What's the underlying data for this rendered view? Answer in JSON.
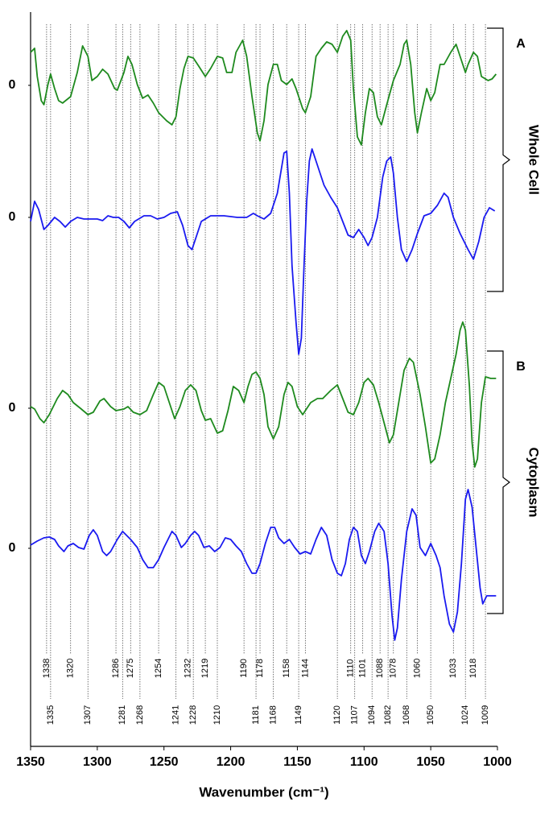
{
  "chart_data": {
    "type": "line",
    "xlabel": "Wavenumber (cm⁻¹)",
    "xlim": [
      1350,
      1000
    ],
    "xticks": [
      1350,
      1300,
      1250,
      1200,
      1150,
      1100,
      1050,
      1000
    ],
    "ylim": [
      0,
      912
    ],
    "yticks": [
      {
        "value": 821,
        "label": "0"
      },
      {
        "value": 657,
        "label": "0"
      },
      {
        "value": 420,
        "label": "0"
      },
      {
        "value": 246,
        "label": "0"
      }
    ],
    "marker_lines_upper": [
      1338,
      1320,
      1286,
      1275,
      1254,
      1232,
      1219,
      1190,
      1178,
      1158,
      1144,
      1110,
      1101,
      1088,
      1078,
      1060,
      1033,
      1018
    ],
    "marker_lines_lower": [
      1335,
      1307,
      1281,
      1268,
      1241,
      1228,
      1210,
      1181,
      1168,
      1149,
      1120,
      1107,
      1094,
      1082,
      1068,
      1050,
      1024,
      1009
    ],
    "groups": [
      {
        "letter": "A",
        "label": "Whole Cell"
      },
      {
        "letter": "B",
        "label": "Cytoplasm"
      }
    ],
    "series": [
      {
        "color": "#1e8a1e",
        "x": [
          1350,
          1347,
          1345,
          1342,
          1340,
          1337,
          1335,
          1332,
          1329,
          1326,
          1320,
          1315,
          1311,
          1307,
          1304,
          1300,
          1296,
          1292,
          1287,
          1285,
          1280,
          1277,
          1274,
          1270,
          1266,
          1262,
          1258,
          1254,
          1248,
          1244,
          1241,
          1238,
          1235,
          1232,
          1228,
          1224,
          1219,
          1215,
          1210,
          1206,
          1203,
          1199,
          1196,
          1191,
          1188,
          1184,
          1180,
          1178,
          1175,
          1172,
          1168,
          1165,
          1162,
          1158,
          1154,
          1151,
          1146,
          1144,
          1140,
          1136,
          1132,
          1128,
          1124,
          1120,
          1116,
          1113,
          1110,
          1108,
          1105,
          1102,
          1099,
          1096,
          1093,
          1090,
          1087,
          1083,
          1078,
          1073,
          1070,
          1068,
          1065,
          1062,
          1060,
          1057,
          1053,
          1050,
          1047,
          1043,
          1040,
          1035,
          1031,
          1028,
          1024,
          1022,
          1018,
          1015,
          1012,
          1007,
          1004,
          1001
        ],
        "values": [
          862,
          867,
          832,
          802,
          797,
          822,
          835,
          817,
          802,
          799,
          807,
          837,
          870,
          857,
          827,
          832,
          841,
          835,
          817,
          815,
          837,
          857,
          847,
          822,
          805,
          809,
          799,
          787,
          777,
          772,
          782,
          817,
          842,
          857,
          855,
          845,
          832,
          842,
          857,
          855,
          837,
          837,
          862,
          877,
          857,
          807,
          762,
          752,
          777,
          822,
          847,
          847,
          827,
          822,
          829,
          817,
          792,
          787,
          807,
          857,
          867,
          875,
          872,
          862,
          882,
          889,
          877,
          817,
          757,
          747,
          787,
          817,
          812,
          782,
          772,
          797,
          827,
          847,
          872,
          877,
          847,
          787,
          762,
          787,
          817,
          802,
          812,
          847,
          847,
          862,
          872,
          857,
          837,
          847,
          862,
          857,
          832,
          827,
          829,
          835
        ]
      },
      {
        "color": "#1a1af0",
        "x": [
          1350,
          1347,
          1344,
          1340,
          1337,
          1332,
          1328,
          1324,
          1320,
          1315,
          1310,
          1305,
          1300,
          1296,
          1292,
          1288,
          1284,
          1280,
          1276,
          1272,
          1265,
          1260,
          1255,
          1250,
          1245,
          1240,
          1236,
          1232,
          1229,
          1226,
          1222,
          1215,
          1205,
          1195,
          1188,
          1183,
          1180,
          1175,
          1170,
          1165,
          1162,
          1160,
          1158,
          1156,
          1154,
          1151,
          1149,
          1147,
          1145,
          1143,
          1141,
          1139,
          1136,
          1130,
          1125,
          1120,
          1116,
          1112,
          1108,
          1104,
          1100,
          1097,
          1094,
          1090,
          1086,
          1083,
          1080,
          1078,
          1075,
          1072,
          1068,
          1064,
          1060,
          1055,
          1050,
          1045,
          1040,
          1037,
          1033,
          1028,
          1022,
          1018,
          1014,
          1010,
          1006,
          1002
        ],
        "values": [
          652,
          677,
          667,
          642,
          647,
          657,
          652,
          645,
          652,
          657,
          655,
          655,
          655,
          653,
          659,
          657,
          657,
          652,
          644,
          652,
          659,
          659,
          655,
          657,
          662,
          664,
          647,
          622,
          617,
          632,
          652,
          659,
          659,
          657,
          657,
          662,
          659,
          655,
          662,
          687,
          717,
          737,
          739,
          687,
          597,
          527,
          487,
          507,
          597,
          677,
          727,
          742,
          727,
          697,
          682,
          669,
          652,
          635,
          632,
          642,
          632,
          622,
          632,
          657,
          707,
          727,
          732,
          712,
          657,
          617,
          602,
          617,
          637,
          659,
          662,
          672,
          687,
          682,
          657,
          637,
          617,
          605,
          627,
          657,
          669,
          665
        ]
      },
      {
        "color": "#1e8a1e",
        "x": [
          1350,
          1347,
          1343,
          1340,
          1336,
          1330,
          1326,
          1322,
          1318,
          1312,
          1307,
          1303,
          1298,
          1295,
          1290,
          1286,
          1280,
          1277,
          1273,
          1268,
          1263,
          1258,
          1254,
          1250,
          1246,
          1242,
          1238,
          1234,
          1230,
          1226,
          1222,
          1219,
          1215,
          1210,
          1206,
          1202,
          1198,
          1194,
          1190,
          1187,
          1184,
          1181,
          1178,
          1175,
          1172,
          1168,
          1164,
          1160,
          1157,
          1154,
          1150,
          1146,
          1140,
          1135,
          1131,
          1125,
          1120,
          1116,
          1112,
          1108,
          1104,
          1100,
          1097,
          1093,
          1089,
          1085,
          1081,
          1078,
          1074,
          1070,
          1066,
          1063,
          1058,
          1054,
          1050,
          1047,
          1043,
          1039,
          1035,
          1031,
          1028,
          1026,
          1024,
          1021,
          1019,
          1017,
          1015,
          1012,
          1009,
          1005,
          1001
        ],
        "values": [
          422,
          419,
          407,
          402,
          412,
          432,
          442,
          437,
          427,
          419,
          412,
          415,
          429,
          432,
          422,
          417,
          419,
          422,
          415,
          412,
          417,
          437,
          452,
          447,
          427,
          407,
          422,
          442,
          449,
          442,
          417,
          405,
          407,
          389,
          392,
          417,
          447,
          442,
          427,
          447,
          462,
          465,
          457,
          437,
          397,
          382,
          397,
          437,
          452,
          447,
          422,
          412,
          427,
          432,
          432,
          442,
          449,
          432,
          415,
          412,
          427,
          452,
          457,
          449,
          427,
          402,
          377,
          387,
          427,
          467,
          482,
          477,
          437,
          397,
          352,
          357,
          387,
          427,
          457,
          487,
          517,
          527,
          517,
          447,
          377,
          347,
          357,
          427,
          459,
          457,
          457
        ]
      },
      {
        "color": "#1a1af0",
        "x": [
          1350,
          1345,
          1340,
          1336,
          1332,
          1329,
          1325,
          1322,
          1318,
          1314,
          1310,
          1306,
          1303,
          1300,
          1296,
          1293,
          1290,
          1285,
          1281,
          1278,
          1275,
          1270,
          1266,
          1262,
          1258,
          1254,
          1250,
          1247,
          1244,
          1241,
          1237,
          1234,
          1230,
          1227,
          1224,
          1220,
          1216,
          1212,
          1208,
          1204,
          1200,
          1196,
          1192,
          1188,
          1184,
          1181,
          1178,
          1174,
          1170,
          1167,
          1164,
          1160,
          1156,
          1152,
          1148,
          1144,
          1140,
          1136,
          1132,
          1128,
          1124,
          1120,
          1117,
          1114,
          1111,
          1108,
          1105,
          1102,
          1099,
          1096,
          1092,
          1089,
          1085,
          1082,
          1079,
          1077,
          1075,
          1072,
          1068,
          1064,
          1061,
          1058,
          1054,
          1050,
          1046,
          1043,
          1040,
          1036,
          1033,
          1030,
          1027,
          1024,
          1022,
          1019,
          1016,
          1013,
          1011,
          1008,
          1004,
          1001
        ],
        "values": [
          250,
          255,
          259,
          260,
          257,
          249,
          242,
          249,
          252,
          247,
          245,
          262,
          269,
          262,
          242,
          237,
          242,
          257,
          267,
          262,
          257,
          247,
          232,
          222,
          222,
          232,
          247,
          257,
          267,
          262,
          247,
          252,
          262,
          267,
          262,
          247,
          249,
          242,
          247,
          259,
          257,
          249,
          242,
          227,
          215,
          215,
          227,
          252,
          272,
          272,
          259,
          252,
          257,
          247,
          239,
          242,
          239,
          257,
          272,
          262,
          232,
          215,
          212,
          227,
          257,
          272,
          267,
          237,
          227,
          242,
          267,
          277,
          267,
          227,
          162,
          132,
          147,
          207,
          267,
          295,
          287,
          247,
          237,
          252,
          237,
          222,
          187,
          152,
          142,
          167,
          227,
          307,
          319,
          297,
          247,
          197,
          177,
          187,
          187,
          187
        ]
      }
    ]
  }
}
